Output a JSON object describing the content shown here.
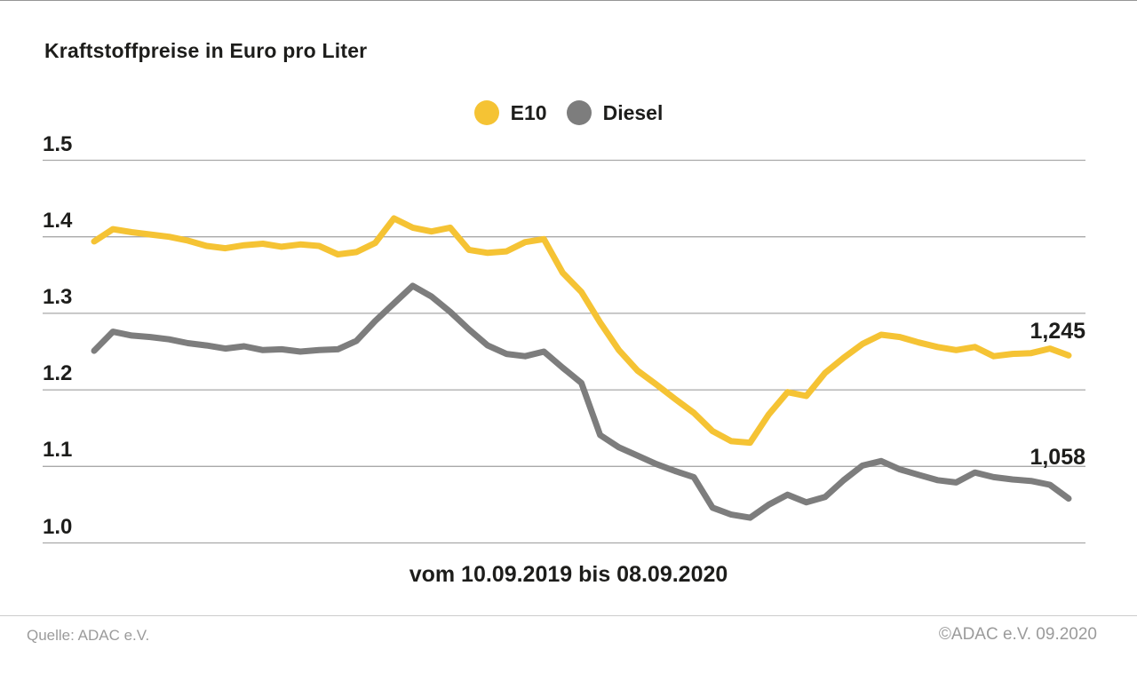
{
  "header": {
    "title": "Kraftstoffpreise in Euro pro Liter"
  },
  "chart_data": {
    "type": "line",
    "title": "Kraftstoffpreise in Euro pro Liter",
    "x_label": "vom 10.09.2019 bis 08.09.2020",
    "x_start": "10.09.2019",
    "x_end": "08.09.2020",
    "interval": "weekly",
    "ylim": [
      1.0,
      1.5
    ],
    "y_ticks": [
      1.5,
      1.4,
      1.3,
      1.2,
      1.1,
      1.0
    ],
    "grid": true,
    "legend_position": "top-center",
    "gridline_color": "#a9a9a9",
    "series": [
      {
        "name": "E10",
        "color": "#f5c334",
        "end_label": "1,245",
        "end_value": 1.245,
        "values": [
          1.394,
          1.41,
          1.406,
          1.403,
          1.4,
          1.395,
          1.388,
          1.385,
          1.389,
          1.391,
          1.387,
          1.39,
          1.388,
          1.377,
          1.38,
          1.392,
          1.424,
          1.412,
          1.407,
          1.412,
          1.383,
          1.379,
          1.381,
          1.393,
          1.397,
          1.353,
          1.328,
          1.288,
          1.252,
          1.225,
          1.207,
          1.188,
          1.17,
          1.146,
          1.133,
          1.131,
          1.168,
          1.197,
          1.192,
          1.222,
          1.242,
          1.26,
          1.272,
          1.269,
          1.262,
          1.256,
          1.252,
          1.256,
          1.244,
          1.247,
          1.248,
          1.254,
          1.245
        ]
      },
      {
        "name": "Diesel",
        "color": "#7d7d7d",
        "end_label": "1,058",
        "end_value": 1.058,
        "values": [
          1.251,
          1.276,
          1.271,
          1.269,
          1.266,
          1.261,
          1.258,
          1.254,
          1.257,
          1.252,
          1.253,
          1.25,
          1.252,
          1.253,
          1.264,
          1.29,
          1.313,
          1.336,
          1.322,
          1.302,
          1.279,
          1.258,
          1.247,
          1.244,
          1.25,
          1.229,
          1.209,
          1.141,
          1.125,
          1.114,
          1.103,
          1.094,
          1.086,
          1.046,
          1.037,
          1.033,
          1.05,
          1.063,
          1.053,
          1.06,
          1.082,
          1.101,
          1.107,
          1.096,
          1.089,
          1.082,
          1.079,
          1.092,
          1.086,
          1.083,
          1.081,
          1.076,
          1.058
        ]
      }
    ]
  },
  "footer": {
    "source": "Quelle: ADAC e.V.",
    "copyright": "©ADAC e.V. 09.2020"
  }
}
